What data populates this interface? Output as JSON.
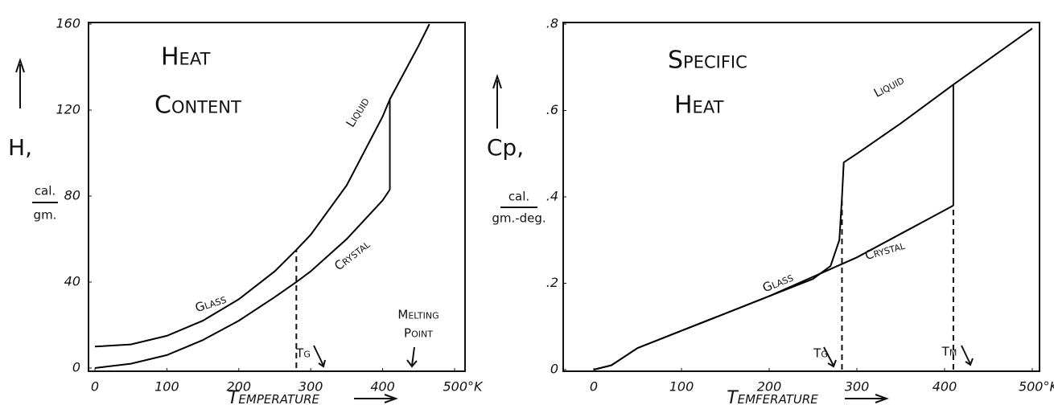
{
  "chart_data": [
    {
      "type": "line",
      "title": [
        "Heat",
        "Content"
      ],
      "y_label": "H,",
      "y_unit": [
        "cal.",
        "gm."
      ],
      "x_label": "Temperature",
      "xlim": [
        0,
        500
      ],
      "xticks": [
        0,
        100,
        200,
        300,
        400,
        {
          "value": 500,
          "label": "500°K"
        }
      ],
      "ylim": [
        0,
        160
      ],
      "yticks": [
        0,
        40,
        80,
        120,
        160
      ],
      "series": [
        {
          "name": "Glass",
          "color": "#000000",
          "x": [
            0,
            50,
            100,
            150,
            200,
            250,
            280,
            300,
            350,
            400,
            410,
            450,
            465
          ],
          "values": [
            10,
            11,
            15,
            22,
            32,
            45,
            55,
            62,
            85,
            117,
            125,
            150,
            160
          ]
        },
        {
          "name": "Crystal",
          "color": "#000000",
          "x": [
            0,
            50,
            100,
            150,
            200,
            250,
            280,
            300,
            350,
            400,
            410
          ],
          "values": [
            0,
            2,
            6,
            13,
            22,
            33,
            40,
            45,
            60,
            78,
            83
          ]
        }
      ],
      "vlines": [
        {
          "x": 410,
          "y": [
            83,
            125
          ],
          "style": "solid"
        },
        {
          "x": 280,
          "y": [
            0,
            55
          ],
          "style": "dashed"
        }
      ],
      "annotations": [
        {
          "lines": [
            "Liquid"
          ]
        },
        {
          "lines": [
            "Glass"
          ]
        },
        {
          "lines": [
            "Crystal"
          ]
        },
        {
          "lines": [
            "Melting",
            "Point"
          ]
        },
        {
          "lines": [
            "Tg"
          ]
        }
      ]
    },
    {
      "type": "line",
      "title": [
        "Specific",
        "Heat"
      ],
      "y_label": "Cp,",
      "y_unit": [
        "cal.",
        "gm.-deg."
      ],
      "x_label": "Temferature",
      "xlim": [
        0,
        500
      ],
      "xticks": [
        0,
        100,
        200,
        300,
        400,
        {
          "value": 500,
          "label": "500°K."
        }
      ],
      "ylim": [
        0,
        0.8
      ],
      "yticks": [
        0,
        {
          "value": 0.2,
          "label": ".2"
        },
        {
          "value": 0.4,
          "label": ".4"
        },
        {
          "value": 0.6,
          "label": ".6"
        },
        {
          "value": 0.8,
          "label": ".8"
        }
      ],
      "series": [
        {
          "name": "Glass",
          "color": "#000000",
          "x": [
            0,
            20,
            50,
            100,
            200,
            250,
            270,
            280,
            283,
            285,
            300,
            350,
            410,
            500
          ],
          "values": [
            0,
            0.01,
            0.05,
            0.09,
            0.17,
            0.21,
            0.24,
            0.3,
            0.4,
            0.48,
            0.5,
            0.57,
            0.66,
            0.79
          ]
        },
        {
          "name": "Crystal",
          "color": "#000000",
          "x": [
            0,
            20,
            50,
            100,
            200,
            300,
            410
          ],
          "values": [
            0,
            0.01,
            0.05,
            0.09,
            0.17,
            0.26,
            0.38
          ]
        }
      ],
      "vlines": [
        {
          "x": 410,
          "y": [
            0.38,
            0.66
          ],
          "style": "solid"
        },
        {
          "x": 283,
          "y": [
            0,
            0.4
          ],
          "style": "dashed"
        },
        {
          "x": 410,
          "y": [
            0,
            0.38
          ],
          "style": "dashed"
        }
      ],
      "annotations": [
        {
          "lines": [
            "Liquid"
          ]
        },
        {
          "lines": [
            "Glass"
          ]
        },
        {
          "lines": [
            "Crystal"
          ]
        },
        {
          "lines": [
            "Tg"
          ]
        },
        {
          "lines": [
            "Tm"
          ]
        }
      ]
    }
  ]
}
